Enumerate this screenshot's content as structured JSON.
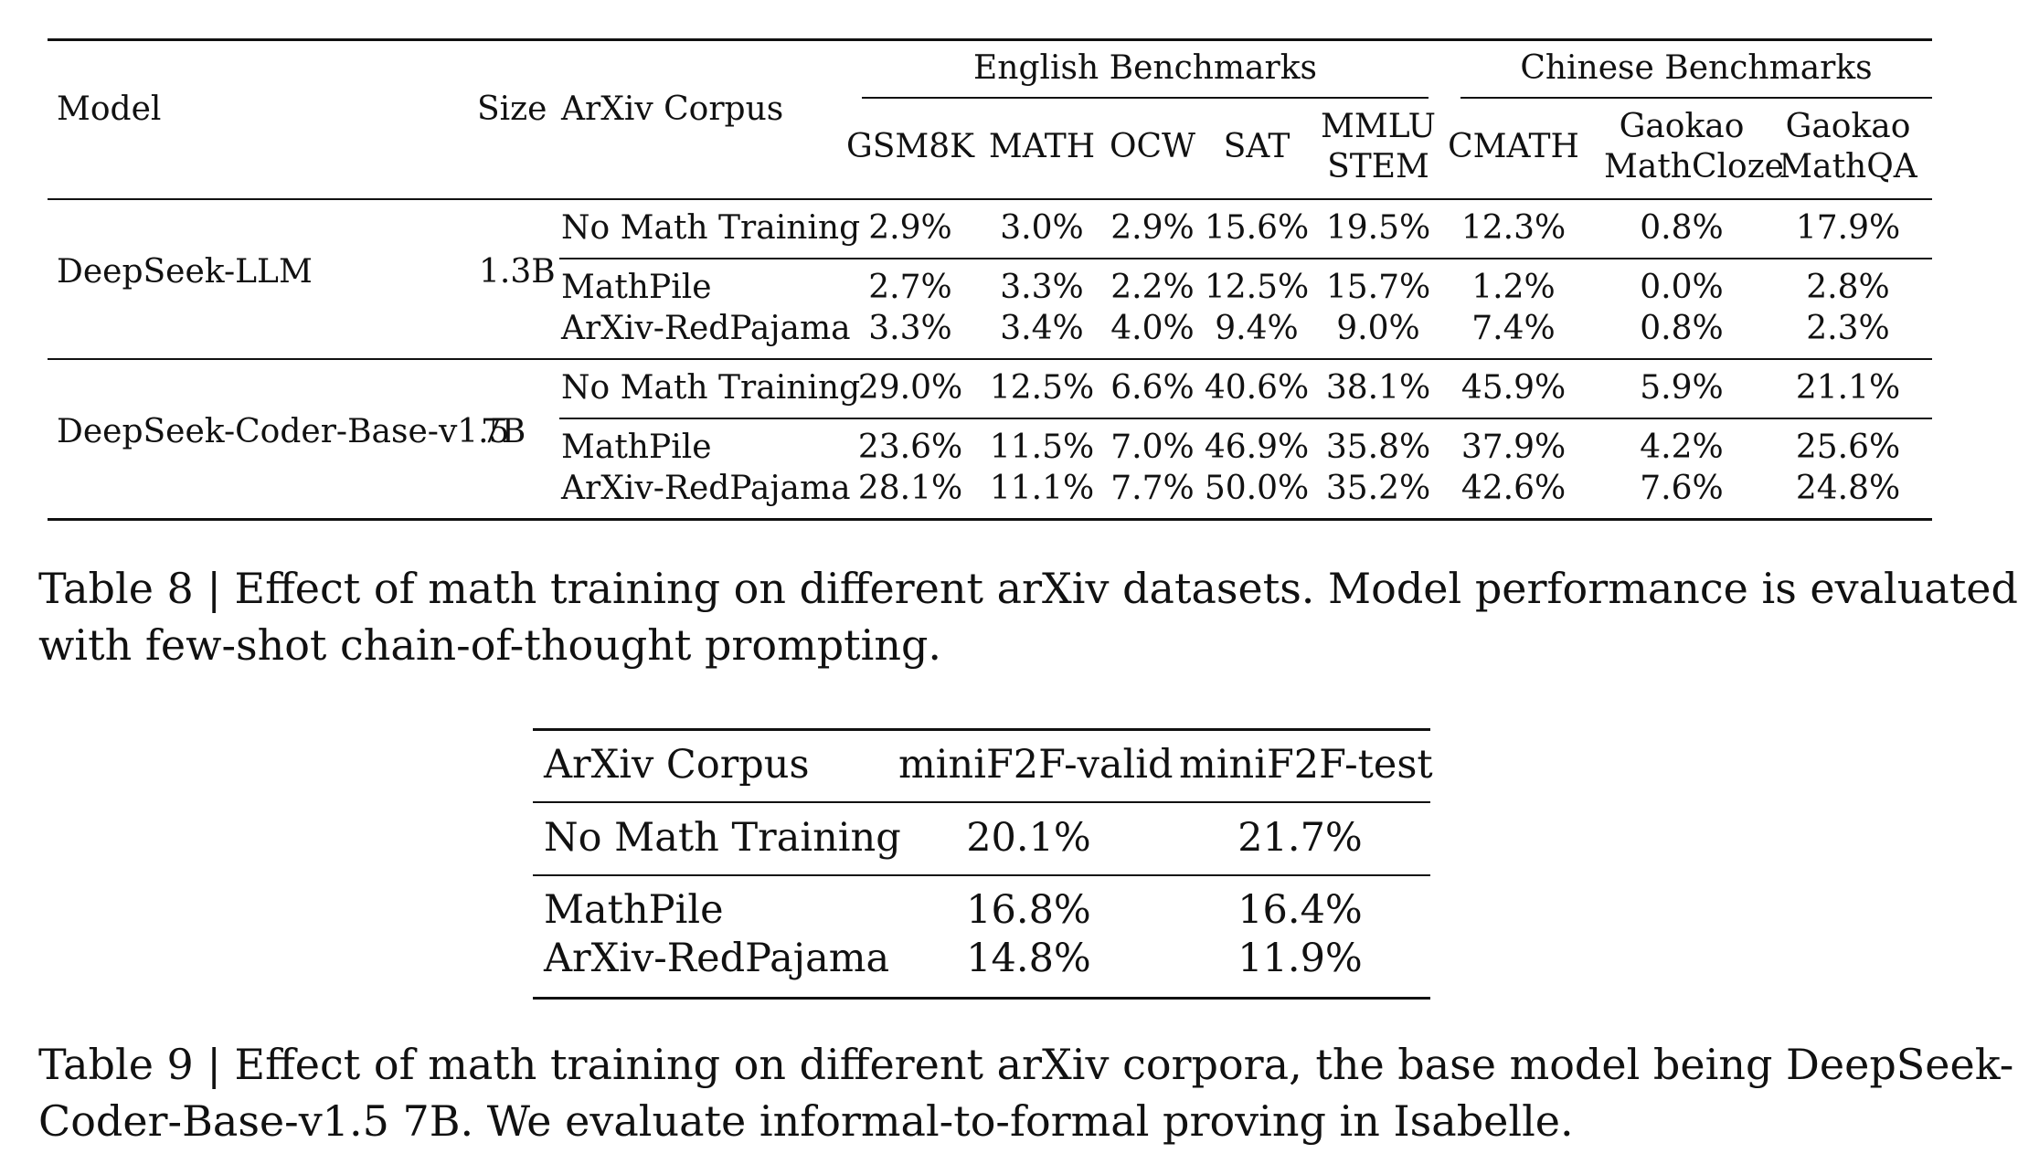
{
  "table8": {
    "header": {
      "model": "Model",
      "size": "Size",
      "corpus": "ArXiv Corpus",
      "group_english": "English Benchmarks",
      "group_chinese": "Chinese Benchmarks",
      "cols": [
        {
          "line1": "GSM8K",
          "line2": ""
        },
        {
          "line1": "MATH",
          "line2": ""
        },
        {
          "line1": "OCW",
          "line2": ""
        },
        {
          "line1": "SAT",
          "line2": ""
        },
        {
          "line1": "MMLU",
          "line2": "STEM"
        },
        {
          "line1": "CMATH",
          "line2": ""
        },
        {
          "line1": "Gaokao",
          "line2": "MathCloze"
        },
        {
          "line1": "Gaokao",
          "line2": "MathQA"
        }
      ]
    },
    "models": [
      {
        "name": "DeepSeek-LLM",
        "size": "1.3B",
        "rows": [
          {
            "corpus": "No Math Training",
            "values": [
              "2.9%",
              "3.0%",
              "2.9%",
              "15.6%",
              "19.5%",
              "12.3%",
              "0.8%",
              "17.9%"
            ]
          },
          {
            "corpus": "MathPile",
            "values": [
              "2.7%",
              "3.3%",
              "2.2%",
              "12.5%",
              "15.7%",
              "1.2%",
              "0.0%",
              "2.8%"
            ]
          },
          {
            "corpus": "ArXiv-RedPajama",
            "values": [
              "3.3%",
              "3.4%",
              "4.0%",
              "9.4%",
              "9.0%",
              "7.4%",
              "0.8%",
              "2.3%"
            ]
          }
        ]
      },
      {
        "name": "DeepSeek-Coder-Base-v1.5",
        "size": "7B",
        "rows": [
          {
            "corpus": "No Math Training",
            "values": [
              "29.0%",
              "12.5%",
              "6.6%",
              "40.6%",
              "38.1%",
              "45.9%",
              "5.9%",
              "21.1%"
            ]
          },
          {
            "corpus": "MathPile",
            "values": [
              "23.6%",
              "11.5%",
              "7.0%",
              "46.9%",
              "35.8%",
              "37.9%",
              "4.2%",
              "25.6%"
            ]
          },
          {
            "corpus": "ArXiv-RedPajama",
            "values": [
              "28.1%",
              "11.1%",
              "7.7%",
              "50.0%",
              "35.2%",
              "42.6%",
              "7.6%",
              "24.8%"
            ]
          }
        ]
      }
    ],
    "caption": {
      "line1": "Table 8 | Effect of math training on different arXiv datasets. Model performance is evaluated",
      "line2": "with few-shot chain-of-thought prompting."
    }
  },
  "table9": {
    "header": {
      "corpus": "ArXiv Corpus",
      "valid": "miniF2F-valid",
      "test": "miniF2F-test"
    },
    "rows": [
      {
        "corpus": "No Math Training",
        "valid": "20.1%",
        "test": "21.7%"
      },
      {
        "corpus": "MathPile",
        "valid": "16.8%",
        "test": "16.4%"
      },
      {
        "corpus": "ArXiv-RedPajama",
        "valid": "14.8%",
        "test": "11.9%"
      }
    ],
    "caption": {
      "line1": "Table 9 | Effect of math training on different arXiv corpora, the base model being DeepSeek-",
      "line2": "Coder-Base-v1.5 7B. We evaluate informal-to-formal proving in Isabelle."
    }
  }
}
